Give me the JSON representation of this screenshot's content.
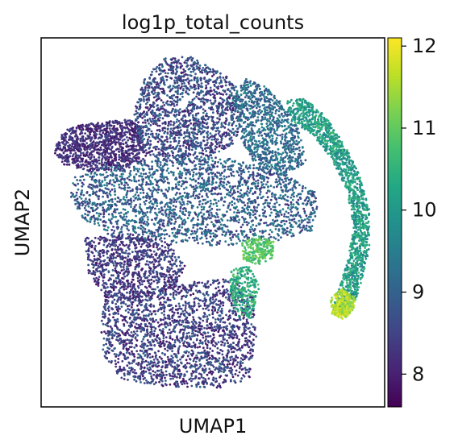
{
  "chart_data": {
    "type": "scatter",
    "title": "log1p_total_counts",
    "xlabel": "UMAP1",
    "ylabel": "UMAP2",
    "colorbar": {
      "min": 7.6,
      "max": 12.1,
      "ticks": [
        8,
        9,
        10,
        11,
        12
      ],
      "tick_labels": [
        "8",
        "9",
        "10",
        "11",
        "12"
      ],
      "colormap": "viridis"
    },
    "grid": false,
    "legend": "none",
    "regions": [
      {
        "name": "upper-left lobe",
        "x": [
          0.03,
          0.18
        ],
        "y": [
          0.78,
          0.6
        ],
        "value_range": [
          7.9,
          8.8
        ]
      },
      {
        "name": "upper-middle lobes",
        "x": [
          0.28,
          0.55
        ],
        "y": [
          0.96,
          0.62
        ],
        "value_range": [
          8.0,
          9.4
        ]
      },
      {
        "name": "central band",
        "x": [
          0.18,
          0.78
        ],
        "y": [
          0.64,
          0.46
        ],
        "value_range": [
          8.3,
          9.6
        ]
      },
      {
        "name": "lower block",
        "x": [
          0.16,
          0.55
        ],
        "y": [
          0.44,
          0.04
        ],
        "value_range": [
          8.0,
          9.2
        ]
      },
      {
        "name": "right arc",
        "x": [
          0.67,
          0.97
        ],
        "y": [
          0.74,
          0.3
        ],
        "value_range": [
          9.6,
          10.8
        ]
      },
      {
        "name": "arc tip",
        "x": [
          0.88,
          0.96
        ],
        "y": [
          0.32,
          0.24
        ],
        "value_range": [
          11.2,
          12.0
        ]
      },
      {
        "name": "lime cluster",
        "x": [
          0.56,
          0.65
        ],
        "y": [
          0.38,
          0.3
        ],
        "value_range": [
          10.6,
          11.3
        ]
      }
    ]
  }
}
